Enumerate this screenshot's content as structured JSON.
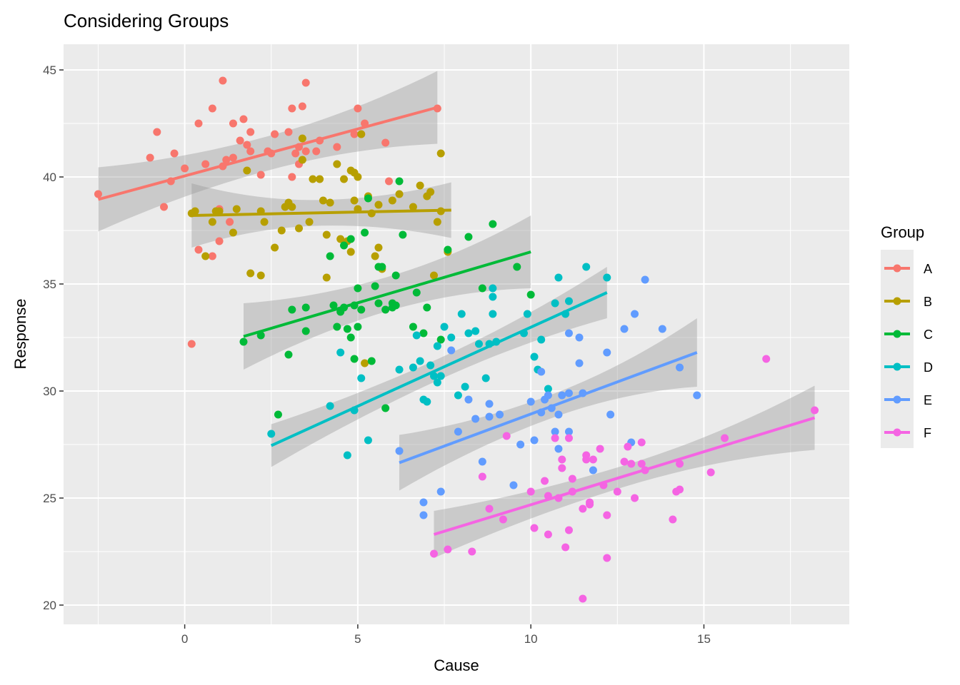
{
  "chart_data": {
    "type": "scatter",
    "title": "Considering Groups",
    "xlabel": "Cause",
    "ylabel": "Response",
    "xlim": [
      -3.5,
      19.2
    ],
    "ylim": [
      19.1,
      46.2
    ],
    "x_ticks": [
      0,
      5,
      10,
      15
    ],
    "y_ticks": [
      20,
      25,
      30,
      35,
      40,
      45
    ],
    "grid": true,
    "legend": {
      "title": "Group",
      "position": "right"
    },
    "series": [
      {
        "name": "A",
        "color": "#F8766D",
        "fit": {
          "x": [
            -2.5,
            7.3
          ],
          "y": [
            38.95,
            43.25
          ],
          "ci_halfwidth": [
            1.5,
            0.8,
            1.7
          ]
        },
        "points": [
          [
            -2.5,
            39.2
          ],
          [
            -1.0,
            40.9
          ],
          [
            -0.8,
            42.1
          ],
          [
            -0.6,
            38.6
          ],
          [
            -0.4,
            39.8
          ],
          [
            -0.3,
            41.1
          ],
          [
            0.0,
            40.4
          ],
          [
            0.2,
            32.2
          ],
          [
            0.4,
            42.5
          ],
          [
            0.4,
            36.6
          ],
          [
            0.6,
            40.6
          ],
          [
            0.8,
            43.2
          ],
          [
            0.8,
            36.3
          ],
          [
            1.0,
            37.0
          ],
          [
            1.0,
            38.5
          ],
          [
            1.1,
            44.5
          ],
          [
            1.1,
            40.5
          ],
          [
            1.2,
            40.8
          ],
          [
            1.3,
            37.9
          ],
          [
            1.4,
            40.9
          ],
          [
            1.4,
            42.5
          ],
          [
            1.6,
            41.7
          ],
          [
            1.7,
            42.7
          ],
          [
            1.8,
            41.5
          ],
          [
            1.9,
            41.2
          ],
          [
            1.9,
            42.1
          ],
          [
            2.2,
            40.1
          ],
          [
            2.4,
            41.2
          ],
          [
            2.5,
            41.1
          ],
          [
            2.6,
            42.0
          ],
          [
            3.0,
            42.1
          ],
          [
            3.1,
            43.2
          ],
          [
            3.1,
            40.0
          ],
          [
            3.2,
            41.1
          ],
          [
            3.3,
            40.6
          ],
          [
            3.3,
            41.4
          ],
          [
            3.4,
            43.3
          ],
          [
            3.5,
            41.2
          ],
          [
            3.5,
            44.4
          ],
          [
            3.8,
            41.2
          ],
          [
            3.9,
            41.7
          ],
          [
            4.4,
            41.4
          ],
          [
            4.9,
            42.0
          ],
          [
            5.0,
            43.2
          ],
          [
            5.1,
            42.0
          ],
          [
            5.2,
            42.5
          ],
          [
            5.8,
            41.6
          ],
          [
            5.9,
            39.8
          ],
          [
            7.3,
            43.2
          ]
        ]
      },
      {
        "name": "B",
        "color": "#B79F00",
        "fit": {
          "x": [
            0.2,
            7.7
          ],
          "y": [
            38.2,
            38.45
          ],
          "ci_halfwidth": [
            1.5,
            0.6,
            1.3
          ]
        },
        "points": [
          [
            0.2,
            38.3
          ],
          [
            0.3,
            38.4
          ],
          [
            0.6,
            36.3
          ],
          [
            0.8,
            37.9
          ],
          [
            0.9,
            38.4
          ],
          [
            1.0,
            38.4
          ],
          [
            1.4,
            37.4
          ],
          [
            1.5,
            38.5
          ],
          [
            1.8,
            40.3
          ],
          [
            1.9,
            35.5
          ],
          [
            2.2,
            38.4
          ],
          [
            2.2,
            35.4
          ],
          [
            2.3,
            37.9
          ],
          [
            2.6,
            36.7
          ],
          [
            2.8,
            37.5
          ],
          [
            2.9,
            38.6
          ],
          [
            3.0,
            38.8
          ],
          [
            3.1,
            38.6
          ],
          [
            3.3,
            37.6
          ],
          [
            3.4,
            40.8
          ],
          [
            3.4,
            41.8
          ],
          [
            3.6,
            37.9
          ],
          [
            3.7,
            39.9
          ],
          [
            3.9,
            39.9
          ],
          [
            4.0,
            38.9
          ],
          [
            4.1,
            35.3
          ],
          [
            4.1,
            37.3
          ],
          [
            4.2,
            38.8
          ],
          [
            4.4,
            40.6
          ],
          [
            4.5,
            37.1
          ],
          [
            4.6,
            39.9
          ],
          [
            4.7,
            37.0
          ],
          [
            4.8,
            40.3
          ],
          [
            4.8,
            36.5
          ],
          [
            4.9,
            38.9
          ],
          [
            4.9,
            40.2
          ],
          [
            5.0,
            40.0
          ],
          [
            5.0,
            38.5
          ],
          [
            5.1,
            42.0
          ],
          [
            5.2,
            31.3
          ],
          [
            5.3,
            39.1
          ],
          [
            5.4,
            38.3
          ],
          [
            5.5,
            36.3
          ],
          [
            5.6,
            38.7
          ],
          [
            5.6,
            36.7
          ],
          [
            5.7,
            35.7
          ],
          [
            6.0,
            38.9
          ],
          [
            6.2,
            39.2
          ],
          [
            6.6,
            38.6
          ],
          [
            6.8,
            39.6
          ],
          [
            7.0,
            39.1
          ],
          [
            7.1,
            39.3
          ],
          [
            7.2,
            35.4
          ],
          [
            7.3,
            37.9
          ],
          [
            7.4,
            38.4
          ],
          [
            7.4,
            41.1
          ],
          [
            7.6,
            36.5
          ]
        ]
      },
      {
        "name": "C",
        "color": "#00BA38",
        "fit": {
          "x": [
            1.7,
            10.0
          ],
          "y": [
            32.55,
            36.5
          ],
          "ci_halfwidth": [
            1.55,
            0.8,
            1.7
          ]
        },
        "points": [
          [
            1.7,
            32.3
          ],
          [
            2.2,
            32.6
          ],
          [
            2.7,
            28.9
          ],
          [
            3.0,
            31.7
          ],
          [
            3.1,
            33.8
          ],
          [
            3.5,
            32.8
          ],
          [
            3.5,
            33.9
          ],
          [
            4.2,
            36.3
          ],
          [
            4.3,
            34.0
          ],
          [
            4.4,
            33.0
          ],
          [
            4.5,
            33.7
          ],
          [
            4.6,
            33.9
          ],
          [
            4.6,
            36.8
          ],
          [
            4.7,
            32.9
          ],
          [
            4.8,
            32.5
          ],
          [
            4.8,
            37.1
          ],
          [
            4.9,
            34.0
          ],
          [
            4.9,
            31.5
          ],
          [
            5.0,
            33.0
          ],
          [
            5.0,
            34.8
          ],
          [
            5.1,
            33.8
          ],
          [
            5.2,
            37.4
          ],
          [
            5.3,
            39.0
          ],
          [
            5.4,
            31.4
          ],
          [
            5.5,
            34.9
          ],
          [
            5.6,
            35.8
          ],
          [
            5.6,
            34.1
          ],
          [
            5.7,
            35.8
          ],
          [
            5.8,
            33.8
          ],
          [
            5.8,
            29.2
          ],
          [
            6.0,
            34.1
          ],
          [
            6.0,
            33.9
          ],
          [
            6.1,
            34.0
          ],
          [
            6.1,
            35.4
          ],
          [
            6.2,
            39.8
          ],
          [
            6.3,
            37.3
          ],
          [
            6.6,
            33.0
          ],
          [
            6.7,
            34.6
          ],
          [
            6.9,
            32.7
          ],
          [
            7.0,
            33.9
          ],
          [
            7.4,
            32.4
          ],
          [
            7.6,
            36.6
          ],
          [
            8.2,
            37.2
          ],
          [
            8.6,
            34.8
          ],
          [
            8.9,
            37.8
          ],
          [
            9.6,
            35.8
          ],
          [
            10.0,
            34.5
          ]
        ]
      },
      {
        "name": "D",
        "color": "#00BFC4",
        "fit": {
          "x": [
            2.5,
            12.2
          ],
          "y": [
            27.45,
            34.6
          ],
          "ci_halfwidth": [
            1.0,
            0.5,
            1.2
          ]
        },
        "points": [
          [
            2.5,
            28.0
          ],
          [
            4.2,
            29.3
          ],
          [
            4.5,
            31.8
          ],
          [
            4.7,
            27.0
          ],
          [
            4.9,
            29.1
          ],
          [
            5.1,
            30.6
          ],
          [
            5.3,
            27.7
          ],
          [
            6.2,
            31.0
          ],
          [
            6.6,
            31.1
          ],
          [
            6.7,
            32.6
          ],
          [
            6.8,
            31.4
          ],
          [
            6.9,
            29.6
          ],
          [
            7.0,
            29.5
          ],
          [
            7.1,
            31.2
          ],
          [
            7.2,
            30.7
          ],
          [
            7.3,
            32.1
          ],
          [
            7.3,
            30.4
          ],
          [
            7.4,
            30.7
          ],
          [
            7.5,
            33.0
          ],
          [
            7.7,
            32.5
          ],
          [
            7.9,
            29.8
          ],
          [
            8.0,
            33.6
          ],
          [
            8.1,
            30.2
          ],
          [
            8.2,
            32.7
          ],
          [
            8.4,
            32.8
          ],
          [
            8.5,
            32.2
          ],
          [
            8.7,
            30.6
          ],
          [
            8.8,
            32.2
          ],
          [
            8.9,
            33.6
          ],
          [
            8.9,
            34.4
          ],
          [
            8.9,
            34.8
          ],
          [
            9.0,
            32.3
          ],
          [
            9.8,
            32.7
          ],
          [
            9.9,
            33.6
          ],
          [
            10.1,
            31.6
          ],
          [
            10.2,
            31.0
          ],
          [
            10.3,
            32.4
          ],
          [
            10.5,
            30.1
          ],
          [
            10.7,
            34.1
          ],
          [
            10.8,
            35.3
          ],
          [
            11.0,
            33.6
          ],
          [
            11.1,
            34.2
          ],
          [
            11.6,
            35.8
          ],
          [
            12.2,
            35.3
          ]
        ]
      },
      {
        "name": "E",
        "color": "#619CFF",
        "fit": {
          "x": [
            6.2,
            14.8
          ],
          "y": [
            26.65,
            31.8
          ],
          "ci_halfwidth": [
            1.3,
            0.55,
            1.6
          ]
        },
        "points": [
          [
            6.2,
            27.2
          ],
          [
            6.9,
            24.8
          ],
          [
            6.9,
            24.2
          ],
          [
            7.4,
            25.3
          ],
          [
            7.7,
            31.9
          ],
          [
            7.9,
            28.1
          ],
          [
            8.2,
            29.6
          ],
          [
            8.4,
            28.7
          ],
          [
            8.6,
            26.7
          ],
          [
            8.8,
            29.4
          ],
          [
            8.8,
            28.8
          ],
          [
            9.1,
            28.9
          ],
          [
            9.5,
            25.6
          ],
          [
            9.7,
            27.5
          ],
          [
            10.0,
            29.5
          ],
          [
            10.1,
            27.7
          ],
          [
            10.3,
            30.9
          ],
          [
            10.3,
            29.0
          ],
          [
            10.4,
            29.6
          ],
          [
            10.5,
            29.8
          ],
          [
            10.6,
            29.2
          ],
          [
            10.7,
            28.1
          ],
          [
            10.8,
            28.9
          ],
          [
            10.8,
            27.3
          ],
          [
            10.9,
            29.8
          ],
          [
            11.1,
            32.7
          ],
          [
            11.1,
            29.9
          ],
          [
            11.1,
            28.1
          ],
          [
            11.4,
            32.5
          ],
          [
            11.5,
            29.9
          ],
          [
            11.4,
            31.3
          ],
          [
            11.8,
            26.3
          ],
          [
            12.2,
            31.8
          ],
          [
            12.3,
            28.9
          ],
          [
            12.7,
            32.9
          ],
          [
            12.9,
            27.6
          ],
          [
            13.0,
            33.6
          ],
          [
            13.3,
            35.2
          ],
          [
            13.8,
            32.9
          ],
          [
            14.3,
            31.1
          ],
          [
            14.8,
            29.8
          ]
        ]
      },
      {
        "name": "F",
        "color": "#F564E3",
        "fit": {
          "x": [
            7.2,
            18.2
          ],
          "y": [
            23.3,
            28.75
          ],
          "ci_halfwidth": [
            1.1,
            0.5,
            1.5
          ]
        },
        "points": [
          [
            7.2,
            22.4
          ],
          [
            7.6,
            22.6
          ],
          [
            8.3,
            22.5
          ],
          [
            8.6,
            26.0
          ],
          [
            8.8,
            24.5
          ],
          [
            9.2,
            24.0
          ],
          [
            9.3,
            27.9
          ],
          [
            10.0,
            25.3
          ],
          [
            10.1,
            23.6
          ],
          [
            10.4,
            25.8
          ],
          [
            10.5,
            25.1
          ],
          [
            10.5,
            23.3
          ],
          [
            10.7,
            27.8
          ],
          [
            10.8,
            25.0
          ],
          [
            10.9,
            26.4
          ],
          [
            10.9,
            26.8
          ],
          [
            11.0,
            22.7
          ],
          [
            11.1,
            27.8
          ],
          [
            11.1,
            23.5
          ],
          [
            11.2,
            25.9
          ],
          [
            11.2,
            25.3
          ],
          [
            11.5,
            24.5
          ],
          [
            11.5,
            20.3
          ],
          [
            11.6,
            27.0
          ],
          [
            11.6,
            26.8
          ],
          [
            11.8,
            26.8
          ],
          [
            11.7,
            24.7
          ],
          [
            11.7,
            24.8
          ],
          [
            12.0,
            27.3
          ],
          [
            12.1,
            25.6
          ],
          [
            12.2,
            22.2
          ],
          [
            12.2,
            24.2
          ],
          [
            12.5,
            25.3
          ],
          [
            12.7,
            26.7
          ],
          [
            12.8,
            27.4
          ],
          [
            12.9,
            26.6
          ],
          [
            13.0,
            25.0
          ],
          [
            13.2,
            27.6
          ],
          [
            13.2,
            26.6
          ],
          [
            13.3,
            26.3
          ],
          [
            14.1,
            24.0
          ],
          [
            14.2,
            25.3
          ],
          [
            14.3,
            25.4
          ],
          [
            14.3,
            26.6
          ],
          [
            15.2,
            26.2
          ],
          [
            15.6,
            27.8
          ],
          [
            16.8,
            31.5
          ],
          [
            18.2,
            29.1
          ]
        ]
      }
    ]
  }
}
